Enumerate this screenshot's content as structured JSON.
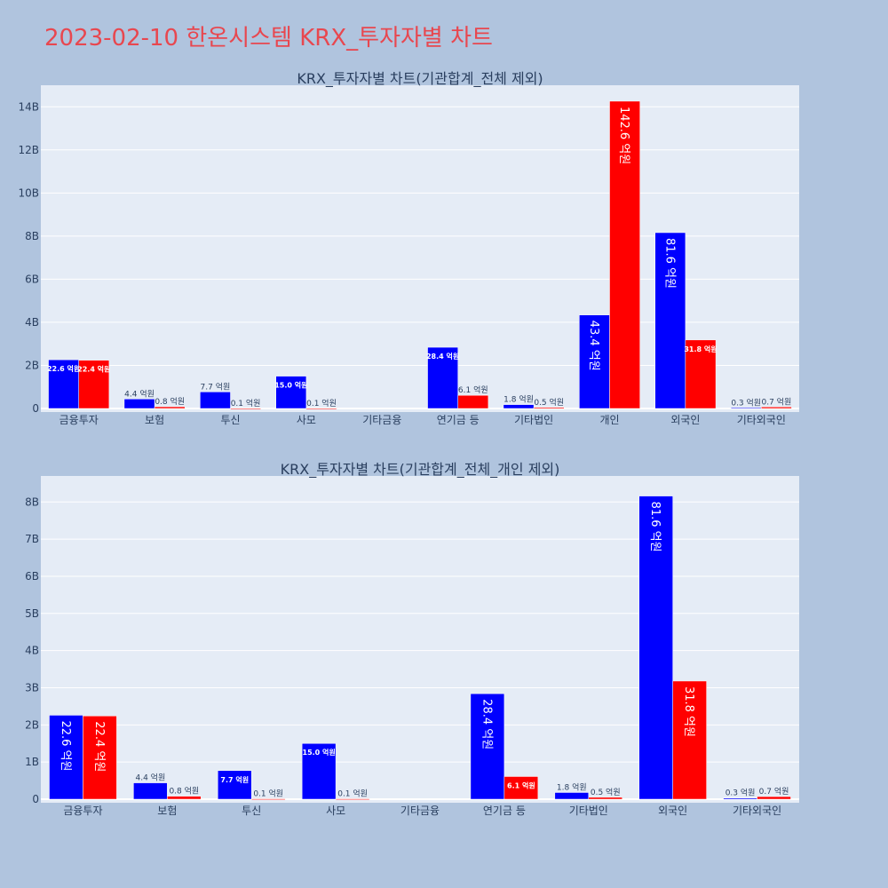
{
  "title": "2023-02-10 한온시스템 KRX_투자자별 차트",
  "colors": {
    "buy": "#0000ff",
    "sell": "#ff0000",
    "plot_bg": "#e5ecf6",
    "page_bg": "#b0c4de",
    "title": "#e8474f"
  },
  "chart_data": [
    {
      "type": "bar",
      "title": "KRX_투자자별 차트(기관합계_전체 제외)",
      "categories": [
        "금융투자",
        "보험",
        "투신",
        "사모",
        "기타금융",
        "연기금 등",
        "기타법인",
        "개인",
        "외국인",
        "기타외국인"
      ],
      "ylim": [
        0,
        15000000000
      ],
      "yticks": [
        0,
        2000000000,
        4000000000,
        6000000000,
        8000000000,
        10000000000,
        12000000000,
        14000000000
      ],
      "ytick_labels": [
        "0",
        "2B",
        "4B",
        "6B",
        "8B",
        "10B",
        "12B",
        "14B"
      ],
      "grid": true,
      "series": [
        {
          "color": "#0000ff",
          "values": [
            2260000000,
            440000000,
            770000000,
            1500000000,
            0,
            2840000000,
            180000000,
            4340000000,
            8160000000,
            30000000
          ],
          "labels": [
            "22.6 억원",
            "4.4 억원",
            "7.7 억원",
            "15.0 억원",
            "",
            "28.4 억원",
            "1.8 억원",
            "43.4 억원",
            "81.6 억원",
            "0.3 억원"
          ]
        },
        {
          "color": "#ff0000",
          "values": [
            2240000000,
            80000000,
            10000000,
            10000000,
            0,
            610000000,
            50000000,
            14260000000,
            3180000000,
            70000000
          ],
          "labels": [
            "22.4 억원",
            "0.8 억원",
            "0.1 억원",
            "0.1 억원",
            "",
            "6.1 억원",
            "0.5 억원",
            "142.6 억원",
            "31.8 억원",
            "0.7 억원"
          ]
        }
      ]
    },
    {
      "type": "bar",
      "title": "KRX_투자자별 차트(기관합계_전체_개인 제외)",
      "categories": [
        "금융투자",
        "보험",
        "투신",
        "사모",
        "기타금융",
        "연기금 등",
        "기타법인",
        "외국인",
        "기타외국인"
      ],
      "ylim": [
        0,
        8700000000
      ],
      "yticks": [
        0,
        1000000000,
        2000000000,
        3000000000,
        4000000000,
        5000000000,
        6000000000,
        7000000000,
        8000000000
      ],
      "ytick_labels": [
        "0",
        "1B",
        "2B",
        "3B",
        "4B",
        "5B",
        "6B",
        "7B",
        "8B"
      ],
      "grid": true,
      "series": [
        {
          "color": "#0000ff",
          "values": [
            2260000000,
            440000000,
            770000000,
            1500000000,
            0,
            2840000000,
            180000000,
            8160000000,
            30000000
          ],
          "labels": [
            "22.6 억원",
            "4.4 억원",
            "7.7 억원",
            "15.0 억원",
            "",
            "28.4 억원",
            "1.8 억원",
            "81.6 억원",
            "0.3 억원"
          ]
        },
        {
          "color": "#ff0000",
          "values": [
            2240000000,
            80000000,
            10000000,
            10000000,
            0,
            610000000,
            50000000,
            3180000000,
            70000000
          ],
          "labels": [
            "22.4 억원",
            "0.8 억원",
            "0.1 억원",
            "0.1 억원",
            "",
            "6.1 억원",
            "0.5 억원",
            "31.8 억원",
            "0.7 억원"
          ]
        }
      ]
    }
  ]
}
